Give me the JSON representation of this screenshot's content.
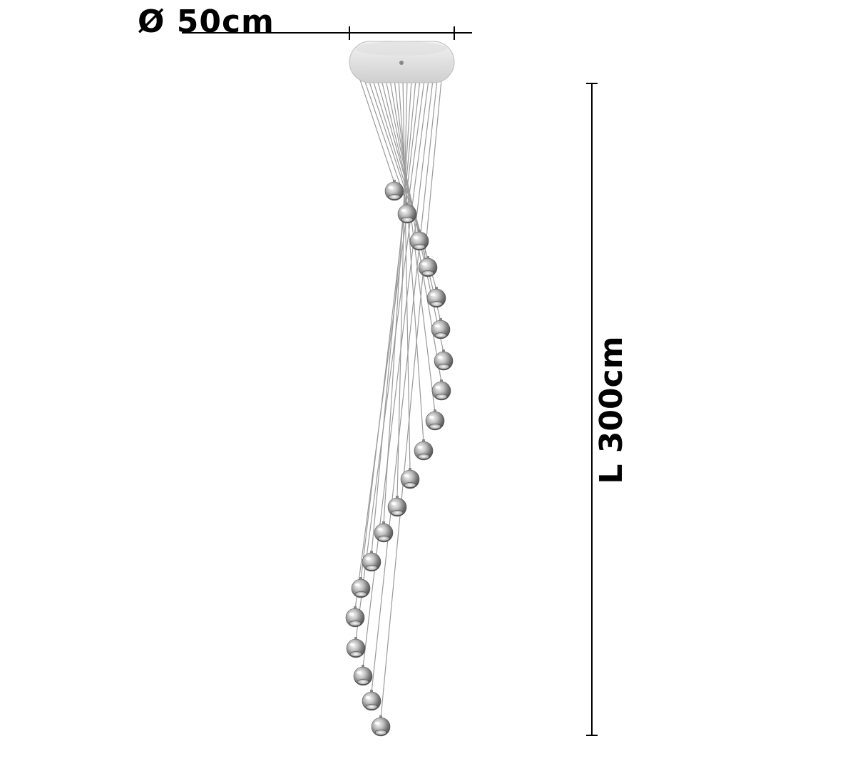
{
  "dimensions": {
    "diameter_label": "Ø 50cm",
    "length_label": "L 300cm"
  },
  "product": {
    "pendant_count": 20,
    "colors": {
      "canopy": "#e9e9e9",
      "canopy_edge": "#bdbdbd",
      "wire": "#9a9a9a",
      "shade_dark": "#6e6e6e",
      "shade_mid": "#b5b5b5",
      "shade_light": "#f4f4f4",
      "dimension_line": "#000000"
    }
  }
}
